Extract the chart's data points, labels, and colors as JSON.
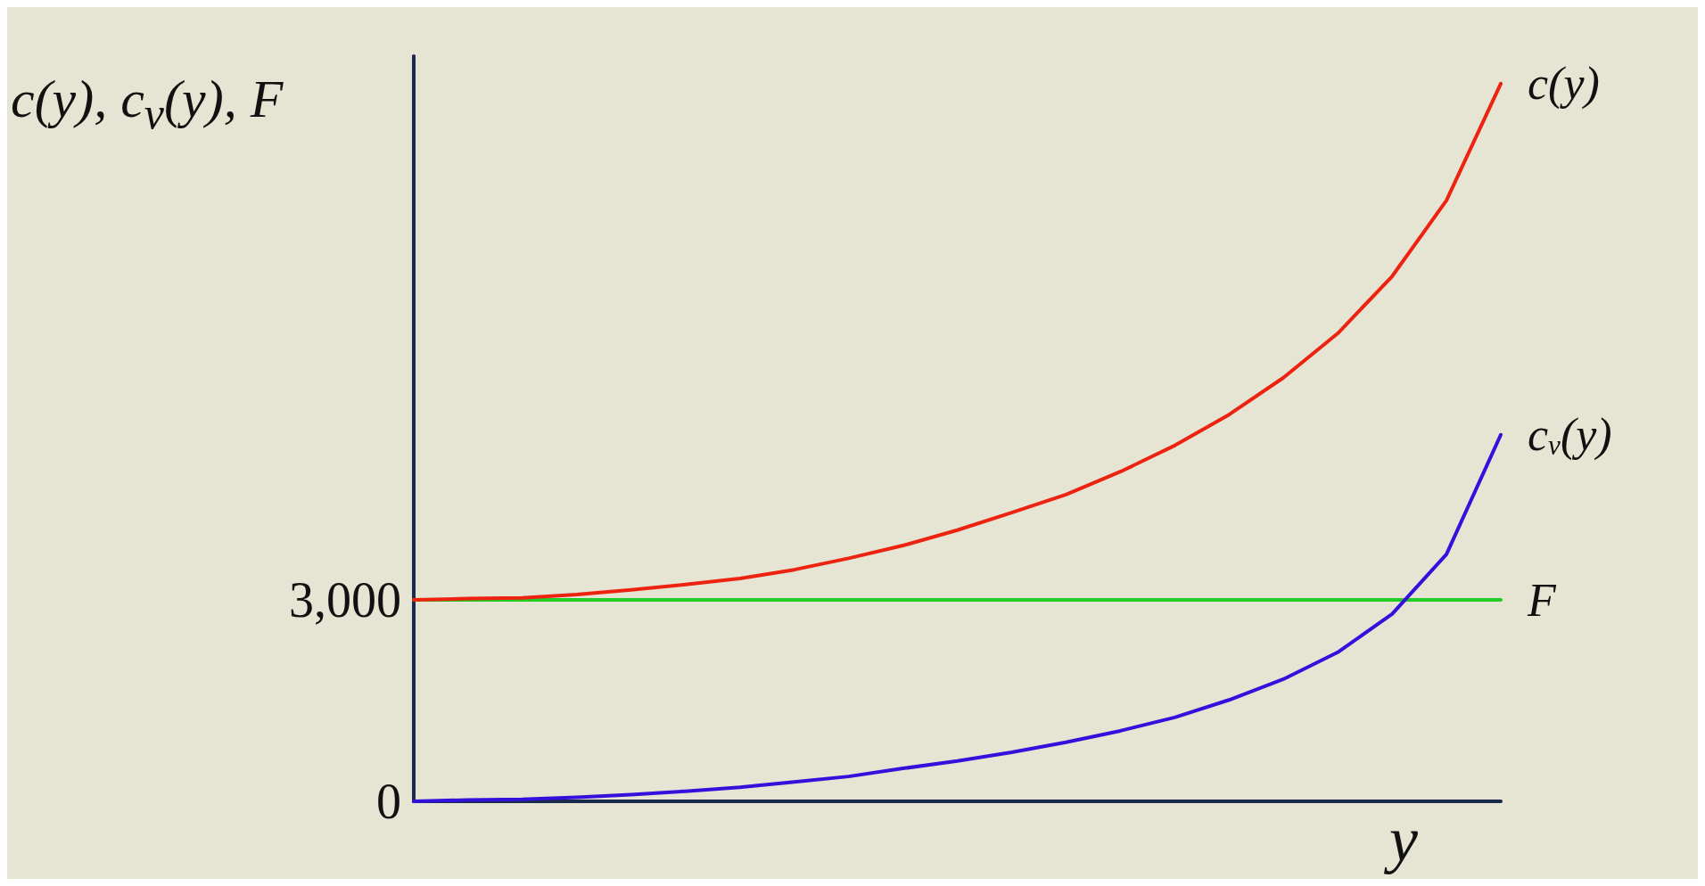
{
  "chart_data": {
    "type": "line",
    "xlabel": "y",
    "ylabel": "c(y), c$_{v}$(y), F",
    "categories": [
      null,
      null,
      null,
      null,
      null,
      null,
      null,
      null,
      null,
      null,
      null,
      null,
      null,
      null,
      null,
      null,
      null,
      null,
      null,
      null,
      null
    ],
    "series": [
      {
        "name": "c(y)",
        "color": "#ee2211",
        "values": [
          3000,
          3020,
          3030,
          3080,
          3150,
          3230,
          3320,
          3450,
          3620,
          3810,
          4040,
          4300,
          4570,
          4910,
          5300,
          5760,
          6310,
          6970,
          7820,
          8950,
          10690
        ]
      },
      {
        "name": "c$_{v}$(y)",
        "color": "#3311dd",
        "values": [
          0,
          20,
          30,
          60,
          100,
          150,
          210,
          290,
          370,
          490,
          600,
          730,
          880,
          1050,
          1250,
          1510,
          1820,
          2220,
          2790,
          3680,
          5460
        ]
      },
      {
        "name": "F",
        "color": "#22cc22",
        "values": [
          3000,
          3000,
          3000,
          3000,
          3000,
          3000,
          3000,
          3000,
          3000,
          3000,
          3000,
          3000,
          3000,
          3000,
          3000,
          3000,
          3000,
          3000,
          3000,
          3000,
          3000
        ]
      }
    ],
    "ylim": [
      0,
      11100
    ],
    "yticks": [
      0,
      {
        "value": 3000,
        "label": "3,000"
      }
    ],
    "tick_labels": "y",
    "grid": false,
    "marker": "none",
    "line_style": "solid"
  }
}
